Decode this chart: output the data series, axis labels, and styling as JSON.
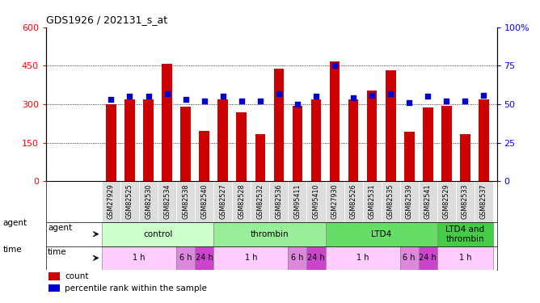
{
  "title": "GDS1926 / 202131_s_at",
  "samples": [
    "GSM27929",
    "GSM82525",
    "GSM82530",
    "GSM82534",
    "GSM82538",
    "GSM82540",
    "GSM82527",
    "GSM82528",
    "GSM82532",
    "GSM82536",
    "GSM95411",
    "GSM95410",
    "GSM27930",
    "GSM82526",
    "GSM82531",
    "GSM82535",
    "GSM82539",
    "GSM82541",
    "GSM82529",
    "GSM82533",
    "GSM82537"
  ],
  "counts": [
    300,
    318,
    320,
    458,
    290,
    195,
    318,
    268,
    183,
    438,
    293,
    318,
    468,
    318,
    352,
    432,
    193,
    288,
    293,
    183,
    318
  ],
  "percentiles": [
    53,
    55,
    55,
    57,
    53,
    52,
    55,
    52,
    52,
    57,
    50,
    55,
    75,
    54,
    56,
    57,
    51,
    55,
    52,
    52,
    56
  ],
  "ylim_left": [
    0,
    600
  ],
  "ylim_right": [
    0,
    100
  ],
  "yticks_left": [
    0,
    150,
    300,
    450,
    600
  ],
  "yticks_right": [
    0,
    25,
    50,
    75,
    100
  ],
  "bar_color": "#cc0000",
  "dot_color": "#0000cc",
  "agent_groups": [
    {
      "label": "control",
      "start": 0,
      "end": 6,
      "color": "#ccffcc"
    },
    {
      "label": "thrombin",
      "start": 6,
      "end": 12,
      "color": "#99ee99"
    },
    {
      "label": "LTD4",
      "start": 12,
      "end": 18,
      "color": "#66dd66"
    },
    {
      "label": "LTD4 and\nthrombin",
      "start": 18,
      "end": 21,
      "color": "#44cc44"
    }
  ],
  "time_groups": [
    {
      "label": "1 h",
      "start": 0,
      "end": 4,
      "color": "#ffccff"
    },
    {
      "label": "6 h",
      "start": 4,
      "end": 5,
      "color": "#dd88dd"
    },
    {
      "label": "24 h",
      "start": 5,
      "end": 6,
      "color": "#cc44cc"
    },
    {
      "label": "1 h",
      "start": 6,
      "end": 10,
      "color": "#ffccff"
    },
    {
      "label": "6 h",
      "start": 10,
      "end": 11,
      "color": "#dd88dd"
    },
    {
      "label": "24 h",
      "start": 11,
      "end": 12,
      "color": "#cc44cc"
    },
    {
      "label": "1 h",
      "start": 12,
      "end": 16,
      "color": "#ffccff"
    },
    {
      "label": "6 h",
      "start": 16,
      "end": 17,
      "color": "#dd88dd"
    },
    {
      "label": "24 h",
      "start": 17,
      "end": 18,
      "color": "#cc44cc"
    },
    {
      "label": "1 h",
      "start": 18,
      "end": 21,
      "color": "#ffccff"
    }
  ],
  "bg_color": "#ffffff",
  "plot_bg_color": "#ffffff",
  "label_row_color": "#dddddd"
}
